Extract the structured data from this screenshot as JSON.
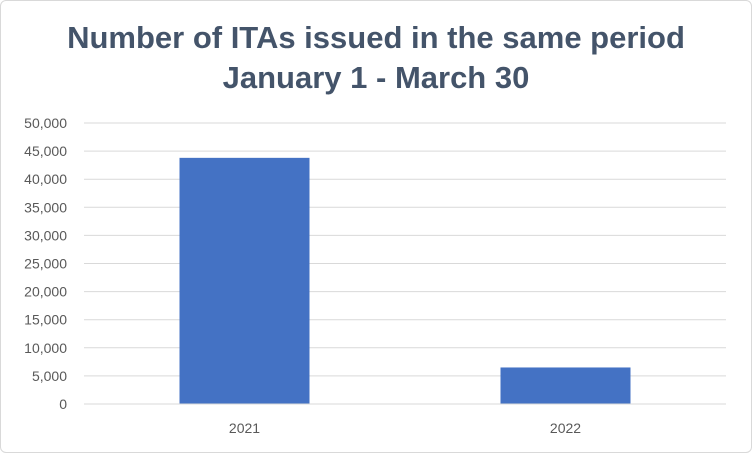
{
  "chart_data": {
    "type": "bar",
    "title": "Number of ITAs issued in the same period",
    "subtitle": "January 1 - March 30",
    "categories": [
      "2021",
      "2022"
    ],
    "values": [
      43800,
      6500
    ],
    "ylim": [
      0,
      50000
    ],
    "y_ticks": [
      "0",
      "5,000",
      "10,000",
      "15,000",
      "20,000",
      "25,000",
      "30,000",
      "35,000",
      "40,000",
      "45,000",
      "50,000"
    ],
    "grid": true,
    "legend": "none",
    "bar_color": "#4472c4",
    "grid_color": "#d9d9d9",
    "title_color": "#44546a"
  }
}
